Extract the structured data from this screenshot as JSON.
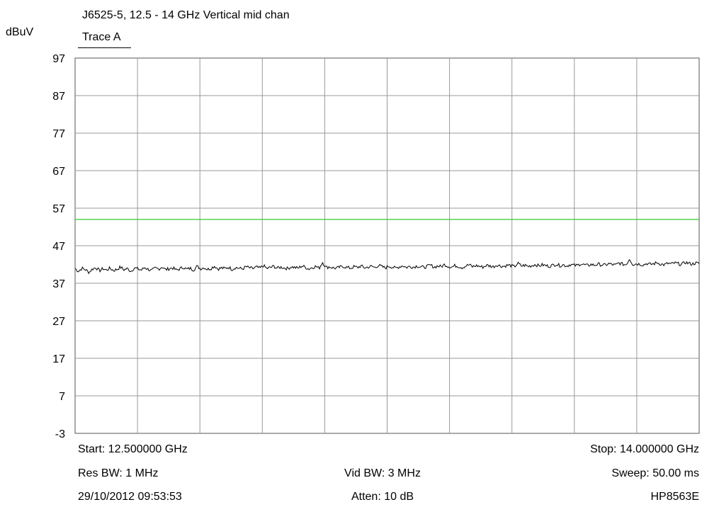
{
  "header": {
    "title": "J6525-5, 12.5 - 14 GHz Vertical mid chan",
    "trace_label": "Trace A",
    "y_unit": "dBuV"
  },
  "footer": {
    "start": "Start: 12.500000 GHz",
    "stop": "Stop: 14.000000 GHz",
    "res_bw": "Res BW: 1 MHz",
    "vid_bw": "Vid BW: 3 MHz",
    "sweep": "Sweep: 50.00 ms",
    "timestamp": "29/10/2012 09:53:53",
    "atten": "Atten: 10 dB",
    "instrument": "HP8563E"
  },
  "chart_data": {
    "type": "line",
    "title": "J6525-5, 12.5 - 14 GHz Vertical mid chan",
    "xlabel": "",
    "ylabel": "dBuV",
    "xlim": [
      12.5,
      14.0
    ],
    "ylim": [
      -3,
      97
    ],
    "y_ticks": [
      "97",
      "87",
      "77",
      "67",
      "57",
      "47",
      "37",
      "27",
      "17",
      "7",
      "-3"
    ],
    "x_divisions": 10,
    "grid": true,
    "colors": {
      "grid": "#999999",
      "trace": "#000000",
      "limit": "#33cc33"
    },
    "series": [
      {
        "kind": "limit",
        "values": [
          54,
          54
        ]
      },
      {
        "kind": "trace",
        "x_start": 12.5,
        "x_stop": 14.0,
        "values": [
          40.9,
          40.2,
          41.0,
          40.6,
          39.9,
          40.8,
          41.2,
          40.3,
          40.9,
          40.5,
          41.0,
          40.4,
          40.7,
          41.3,
          40.6,
          40.9,
          40.2,
          41.1,
          40.8,
          40.5,
          41.2,
          40.7,
          40.4,
          41.0,
          40.8,
          41.4,
          40.6,
          40.9,
          41.1,
          40.5,
          40.8,
          41.3,
          40.7,
          41.0,
          40.6,
          41.5,
          40.9,
          41.2,
          40.7,
          41.0,
          41.6,
          40.8,
          41.1,
          40.9,
          41.3,
          40.7,
          41.2,
          41.0,
          40.8,
          41.4,
          41.1,
          40.9,
          41.3,
          41.0,
          41.7,
          40.9,
          41.2,
          41.5,
          41.0,
          41.3,
          41.1,
          40.9,
          41.4,
          41.2,
          41.0,
          41.6,
          41.3,
          40.8,
          41.2,
          41.5,
          41.0,
          42.6,
          41.2,
          41.4,
          41.1,
          41.0,
          41.3,
          41.5,
          41.2,
          41.0,
          41.4,
          41.2,
          41.6,
          41.1,
          41.3,
          41.5,
          41.2,
          41.8,
          41.4,
          41.1,
          41.6,
          41.3,
          41.0,
          41.4,
          41.7,
          41.2,
          41.5,
          41.3,
          41.6,
          41.4,
          41.2,
          41.5,
          41.8,
          41.3,
          41.6,
          41.4,
          42.0,
          41.5,
          41.3,
          41.7,
          41.5,
          41.2,
          41.6,
          41.9,
          41.4,
          41.7,
          41.5,
          41.3,
          41.8,
          41.6,
          41.4,
          41.9,
          41.6,
          41.5,
          41.8,
          41.7,
          41.4,
          42.3,
          41.6,
          41.8,
          41.5,
          41.7,
          42.0,
          41.6,
          41.9,
          41.7,
          41.5,
          41.8,
          42.1,
          41.7,
          41.9,
          41.6,
          42.0,
          41.8,
          41.7,
          42.2,
          41.9,
          41.7,
          42.0,
          41.8,
          42.1,
          41.9,
          41.8,
          42.2,
          42.0,
          41.8,
          42.4,
          42.1,
          41.9,
          43.5,
          42.0,
          42.2,
          42.1,
          41.9,
          42.3,
          42.0,
          42.2,
          42.5,
          42.1,
          41.9,
          42.3,
          42.1,
          42.4,
          42.2,
          42.0,
          42.6,
          42.3,
          42.1,
          42.4,
          42.2
        ]
      }
    ]
  }
}
